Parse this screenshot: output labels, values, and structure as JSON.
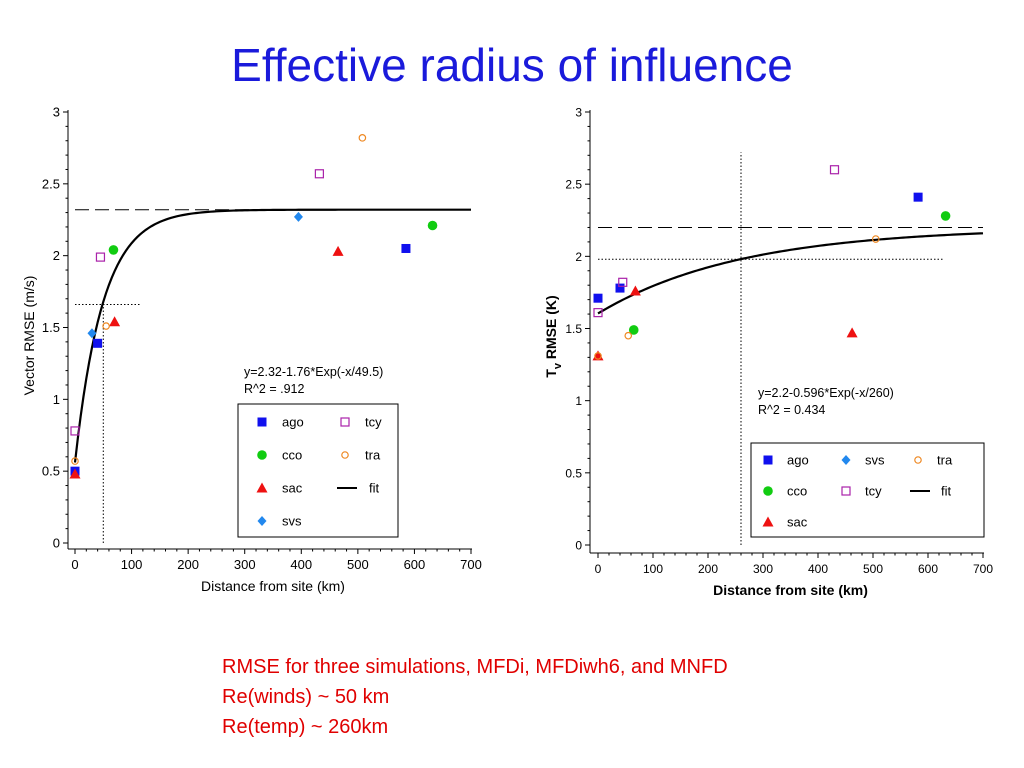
{
  "title": "Effective radius of influence",
  "caption_lines": [
    "RMSE for three simulations, MFDi, MFDiwh6, and MNFD",
    "Re(winds) ~ 50 km",
    "Re(temp) ~ 260km"
  ],
  "colors": {
    "title": "#1a1adb",
    "caption": "#e00000",
    "ago": "#1010ee",
    "cco": "#11cc11",
    "sac": "#ee1111",
    "svs": "#2288ee",
    "tcy": "#aa22aa",
    "tra": "#ee8822"
  },
  "chart_data": [
    {
      "type": "scatter",
      "title": "",
      "xlabel": "Distance from site (km)",
      "ylabel": "Vector RMSE (m/s)",
      "xlim": [
        0,
        700
      ],
      "ylim": [
        0,
        3
      ],
      "xticks": [
        "0",
        "100",
        "200",
        "300",
        "400",
        "500",
        "600",
        "700"
      ],
      "yticks": [
        "0",
        "0.5",
        "1",
        "1.5",
        "2",
        "2.5",
        "3"
      ],
      "equation": "y=2.32-1.76*Exp(-x/49.5)",
      "r2": "R^2 = .912",
      "fit": {
        "a": 2.32,
        "b": 1.76,
        "c": 49.5,
        "xmin": 0,
        "xmax": 700
      },
      "asymptote_y": 2.32,
      "radius_x": 50,
      "radius_y": 1.66,
      "legend_position": "bottom-right",
      "legend_cols": [
        [
          "ago",
          "cco",
          "sac",
          "svs"
        ],
        [
          "tcy",
          "tra",
          "fit"
        ]
      ],
      "series": [
        {
          "name": "ago",
          "marker": "square",
          "points": [
            [
              0,
              0.5
            ],
            [
              40,
              1.39
            ],
            [
              585,
              2.05
            ]
          ]
        },
        {
          "name": "cco",
          "marker": "circle",
          "points": [
            [
              68,
              2.04
            ],
            [
              632,
              2.21
            ]
          ]
        },
        {
          "name": "sac",
          "marker": "triangle",
          "points": [
            [
              0,
              0.48
            ],
            [
              70,
              1.54
            ],
            [
              465,
              2.03
            ]
          ]
        },
        {
          "name": "svs",
          "marker": "diamond",
          "points": [
            [
              30,
              1.46
            ],
            [
              395,
              2.27
            ]
          ]
        },
        {
          "name": "tcy",
          "marker": "open-square",
          "points": [
            [
              0,
              0.78
            ],
            [
              45,
              1.99
            ],
            [
              432,
              2.57
            ]
          ]
        },
        {
          "name": "tra",
          "marker": "open-circle",
          "points": [
            [
              0,
              0.57
            ],
            [
              55,
              1.51
            ],
            [
              508,
              2.82
            ]
          ]
        }
      ]
    },
    {
      "type": "scatter",
      "title": "",
      "xlabel": "Distance from site (km)",
      "ylabel": "RMSE (K)",
      "ylabel_var": "T",
      "ylabel_sub": "v",
      "xlim": [
        0,
        700
      ],
      "ylim": [
        0,
        3
      ],
      "xticks": [
        "0",
        "100",
        "200",
        "300",
        "400",
        "500",
        "600",
        "700"
      ],
      "yticks": [
        "0",
        "0.5",
        "1",
        "1.5",
        "2",
        "2.5",
        "3"
      ],
      "equation": "y=2.2-0.596*Exp(-x/260)",
      "r2": "R^2 = 0.434",
      "fit": {
        "a": 2.2,
        "b": 0.596,
        "c": 260,
        "xmin": 0,
        "xmax": 700
      },
      "asymptote_y": 2.2,
      "radius_x": 260,
      "radius_y": 1.98,
      "legend_position": "bottom-right",
      "legend_cols": [
        [
          "ago",
          "cco",
          "sac"
        ],
        [
          "svs",
          "tcy"
        ],
        [
          "tra",
          "fit"
        ]
      ],
      "series": [
        {
          "name": "ago",
          "marker": "square",
          "points": [
            [
              0,
              1.71
            ],
            [
              40,
              1.78
            ],
            [
              582,
              2.41
            ]
          ]
        },
        {
          "name": "cco",
          "marker": "circle",
          "points": [
            [
              65,
              1.49
            ],
            [
              632,
              2.28
            ]
          ]
        },
        {
          "name": "sac",
          "marker": "triangle",
          "points": [
            [
              0,
              1.31
            ],
            [
              68,
              1.76
            ],
            [
              462,
              1.47
            ]
          ]
        },
        {
          "name": "svs",
          "marker": "diamond",
          "points": []
        },
        {
          "name": "tcy",
          "marker": "open-square",
          "points": [
            [
              0,
              1.61
            ],
            [
              45,
              1.82
            ],
            [
              430,
              2.6
            ]
          ]
        },
        {
          "name": "tra",
          "marker": "open-circle",
          "points": [
            [
              0,
              1.31
            ],
            [
              55,
              1.45
            ],
            [
              505,
              2.12
            ]
          ]
        }
      ]
    }
  ]
}
